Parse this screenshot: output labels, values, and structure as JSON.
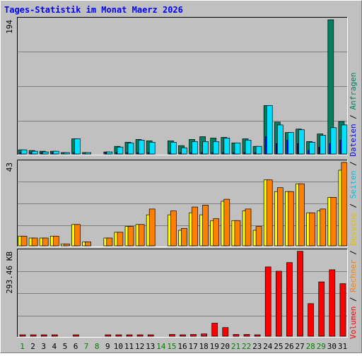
{
  "title": "Tages-Statistik im Monat Maerz 2026",
  "colors": {
    "background": "#c0c0c0",
    "title": "#0000ff",
    "anfragen": "#008060",
    "dateien": "#0000ff",
    "seiten": "#00e0ff",
    "besuche": "#ffff00",
    "rechner": "#ff8000",
    "volumen": "#ff0000",
    "weekday_label": "#0000ff",
    "weekend_label": "#008000"
  },
  "chart_data": [
    {
      "type": "bar",
      "panel": "top",
      "max_label": "194",
      "ylim": [
        0,
        194
      ],
      "x": [
        1,
        2,
        3,
        4,
        5,
        6,
        7,
        8,
        9,
        10,
        11,
        12,
        13,
        14,
        15,
        16,
        17,
        18,
        19,
        20,
        21,
        22,
        23,
        24,
        25,
        26,
        27,
        28,
        29,
        30,
        31
      ],
      "series": [
        {
          "name": "Anfragen",
          "values": [
            6,
            5,
            4,
            4,
            1,
            22,
            2,
            0,
            3,
            11,
            17,
            21,
            19,
            0,
            19,
            12,
            21,
            25,
            23,
            24,
            16,
            22,
            11,
            70,
            46,
            31,
            36,
            18,
            29,
            194,
            47
          ]
        },
        {
          "name": "Dateien",
          "values": [
            1,
            1,
            1,
            1,
            0,
            1,
            0,
            0,
            1,
            1,
            1,
            1,
            1,
            0,
            1,
            1,
            1,
            1,
            1,
            1,
            1,
            1,
            1,
            25,
            15,
            20,
            15,
            5,
            10,
            15,
            20
          ]
        },
        {
          "name": "Seiten",
          "values": [
            6,
            4,
            3,
            4,
            1,
            22,
            2,
            0,
            3,
            10,
            16,
            20,
            17,
            0,
            17,
            9,
            18,
            18,
            18,
            23,
            16,
            20,
            11,
            70,
            42,
            31,
            35,
            17,
            27,
            38,
            42
          ]
        }
      ]
    },
    {
      "type": "bar",
      "panel": "middle",
      "max_label": "43",
      "ylim": [
        0,
        43
      ],
      "x": [
        1,
        2,
        3,
        4,
        5,
        6,
        7,
        8,
        9,
        10,
        11,
        12,
        13,
        14,
        15,
        16,
        17,
        18,
        19,
        20,
        21,
        22,
        23,
        24,
        25,
        26,
        27,
        28,
        29,
        30,
        31
      ],
      "series": [
        {
          "name": "Besuche",
          "values": [
            5,
            4,
            4,
            5,
            1,
            11,
            2,
            0,
            4,
            7,
            10,
            11,
            16,
            0,
            16,
            8,
            17,
            16,
            13,
            23,
            13,
            18,
            8,
            34,
            28,
            28,
            32,
            17,
            18,
            25,
            39
          ]
        },
        {
          "name": "Rechner",
          "values": [
            5,
            4,
            4,
            5,
            1,
            11,
            2,
            0,
            4,
            7,
            10,
            11,
            19,
            0,
            18,
            9,
            20,
            21,
            14,
            24,
            13,
            19,
            10,
            34,
            30,
            28,
            32,
            17,
            19,
            25,
            43
          ]
        }
      ]
    },
    {
      "type": "bar",
      "panel": "bottom",
      "max_label": "293.46 KB",
      "ylim": [
        0,
        293.46
      ],
      "x": [
        1,
        2,
        3,
        4,
        5,
        6,
        7,
        8,
        9,
        10,
        11,
        12,
        13,
        14,
        15,
        16,
        17,
        18,
        19,
        20,
        21,
        22,
        23,
        24,
        25,
        26,
        27,
        28,
        29,
        30,
        31
      ],
      "series": [
        {
          "name": "Volumen",
          "values": [
            4,
            4,
            4,
            4,
            0,
            4,
            0,
            0,
            4,
            4,
            4,
            4,
            4,
            0,
            6,
            5,
            6,
            8,
            45,
            30,
            6,
            6,
            4,
            240,
            225,
            255,
            294,
            113,
            188,
            230,
            182
          ]
        }
      ]
    }
  ],
  "days": [
    {
      "label": "1",
      "weekend": true
    },
    {
      "label": "2",
      "weekend": false
    },
    {
      "label": "3",
      "weekend": false
    },
    {
      "label": "4",
      "weekend": false
    },
    {
      "label": "5",
      "weekend": false
    },
    {
      "label": "6",
      "weekend": false
    },
    {
      "label": "7",
      "weekend": true
    },
    {
      "label": "8",
      "weekend": true
    },
    {
      "label": "9",
      "weekend": false
    },
    {
      "label": "10",
      "weekend": false
    },
    {
      "label": "11",
      "weekend": false
    },
    {
      "label": "12",
      "weekend": false
    },
    {
      "label": "13",
      "weekend": false
    },
    {
      "label": "14",
      "weekend": true
    },
    {
      "label": "15",
      "weekend": true
    },
    {
      "label": "16",
      "weekend": false
    },
    {
      "label": "17",
      "weekend": false
    },
    {
      "label": "18",
      "weekend": false
    },
    {
      "label": "19",
      "weekend": false
    },
    {
      "label": "20",
      "weekend": false
    },
    {
      "label": "21",
      "weekend": true
    },
    {
      "label": "22",
      "weekend": true
    },
    {
      "label": "23",
      "weekend": false
    },
    {
      "label": "24",
      "weekend": false
    },
    {
      "label": "25",
      "weekend": false
    },
    {
      "label": "26",
      "weekend": false
    },
    {
      "label": "27",
      "weekend": false
    },
    {
      "label": "28",
      "weekend": true
    },
    {
      "label": "29",
      "weekend": true
    },
    {
      "label": "30",
      "weekend": false
    },
    {
      "label": "31",
      "weekend": false
    }
  ],
  "right_legend": {
    "top": [
      "Anfragen",
      "Dateien",
      "Seiten",
      "Besuche"
    ],
    "bottom": [
      "Rechner",
      "Volumen"
    ],
    "separator": " / "
  }
}
